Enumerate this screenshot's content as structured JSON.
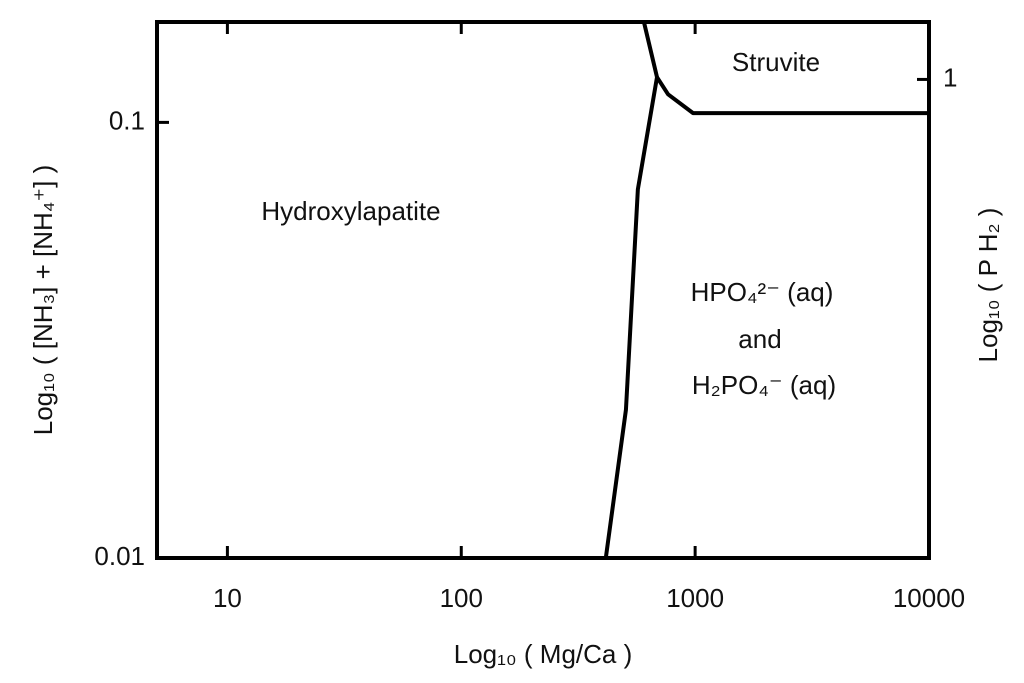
{
  "chart_data": {
    "type": "line",
    "x_label": "Log₁₀ ( Mg/Ca )",
    "y_label": "Log₁₀ ( [NH₃] + [NH₄⁺] )",
    "y2_label": "Log₁₀ ( P H₂ )",
    "xscale": "log",
    "yscale": "log",
    "xlim": [
      5,
      10000
    ],
    "xticks": [
      10,
      100,
      1000,
      10000
    ],
    "ylim": [
      0.01,
      0.17
    ],
    "yticks": [
      0.01,
      0.1
    ],
    "y2lim": [
      0,
      1.12
    ],
    "y2ticks": [
      1
    ],
    "color": "#000000",
    "series": [
      {
        "x": [
          415,
          506,
          569,
          687,
          604
        ],
        "values": [
          0.01,
          0.0219,
          0.0702,
          0.127,
          0.17
        ]
      },
      {
        "x": [
          687,
          766,
          980,
          10000
        ],
        "values": [
          0.127,
          0.116,
          0.105,
          0.105
        ]
      }
    ],
    "annotations": [
      "Struvite",
      "Hydroxylapatite",
      "HPO₄²⁻ (aq)",
      "and",
      "H₂PO₄⁻ (aq)"
    ]
  }
}
